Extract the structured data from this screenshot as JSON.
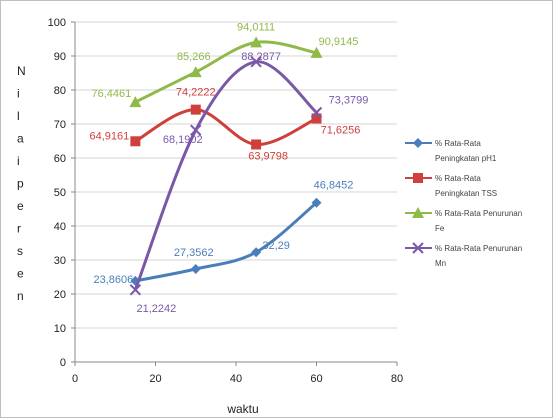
{
  "chart_data": {
    "type": "line",
    "xlabel": "waktu",
    "ylabel": "Nilai persen",
    "xlim": [
      0,
      80
    ],
    "ylim": [
      0,
      100
    ],
    "x_ticks": [
      "0",
      "20",
      "40",
      "60",
      "80"
    ],
    "y_ticks": [
      "0",
      "10",
      "20",
      "30",
      "40",
      "50",
      "60",
      "70",
      "80",
      "90",
      "100"
    ],
    "grid": "horizontal",
    "legend_position": "right",
    "series": [
      {
        "name": "% Rata-Rata Peningkatan pH1",
        "name_lines": [
          "% Rata-Rata",
          "Peningkatan pH1"
        ],
        "color": "#4a7ebb",
        "marker": "diamond",
        "x": [
          15,
          30,
          45,
          60
        ],
        "y": [
          23.8606,
          27.3562,
          32.29,
          46.8452
        ],
        "labels": [
          "23,8606",
          "27,3562",
          "32,29",
          "46,8452"
        ]
      },
      {
        "name": "% Rata-Rata Peningkatan TSS",
        "name_lines": [
          "% Rata-Rata",
          "Peningkatan TSS"
        ],
        "color": "#cf3f3c",
        "marker": "square",
        "x": [
          15,
          30,
          45,
          60
        ],
        "y": [
          64.9161,
          74.2222,
          63.9798,
          71.6256
        ],
        "labels": [
          "64,9161",
          "74,2222",
          "63,9798",
          "71,6256"
        ]
      },
      {
        "name": "% Rata-Rata Penurunan Fe",
        "name_lines": [
          "% Rata-Rata Penurunan",
          "Fe"
        ],
        "color": "#8fba49",
        "marker": "triangle",
        "x": [
          15,
          30,
          45,
          60
        ],
        "y": [
          76.4461,
          85.266,
          94.0111,
          90.9145
        ],
        "labels": [
          "76,4461",
          "85,266",
          "94,0111",
          "90,9145"
        ]
      },
      {
        "name": "% Rata-Rata Penurunan Mn",
        "name_lines": [
          "% Rata-Rata Penurunan",
          "Mn"
        ],
        "color": "#7a58a8",
        "marker": "x",
        "x": [
          15,
          30,
          45,
          60
        ],
        "y": [
          21.2242,
          68.1902,
          88.2877,
          73.3799
        ],
        "labels": [
          "21,2242",
          "68,1902",
          "88,2877",
          "73,3799"
        ]
      }
    ]
  }
}
